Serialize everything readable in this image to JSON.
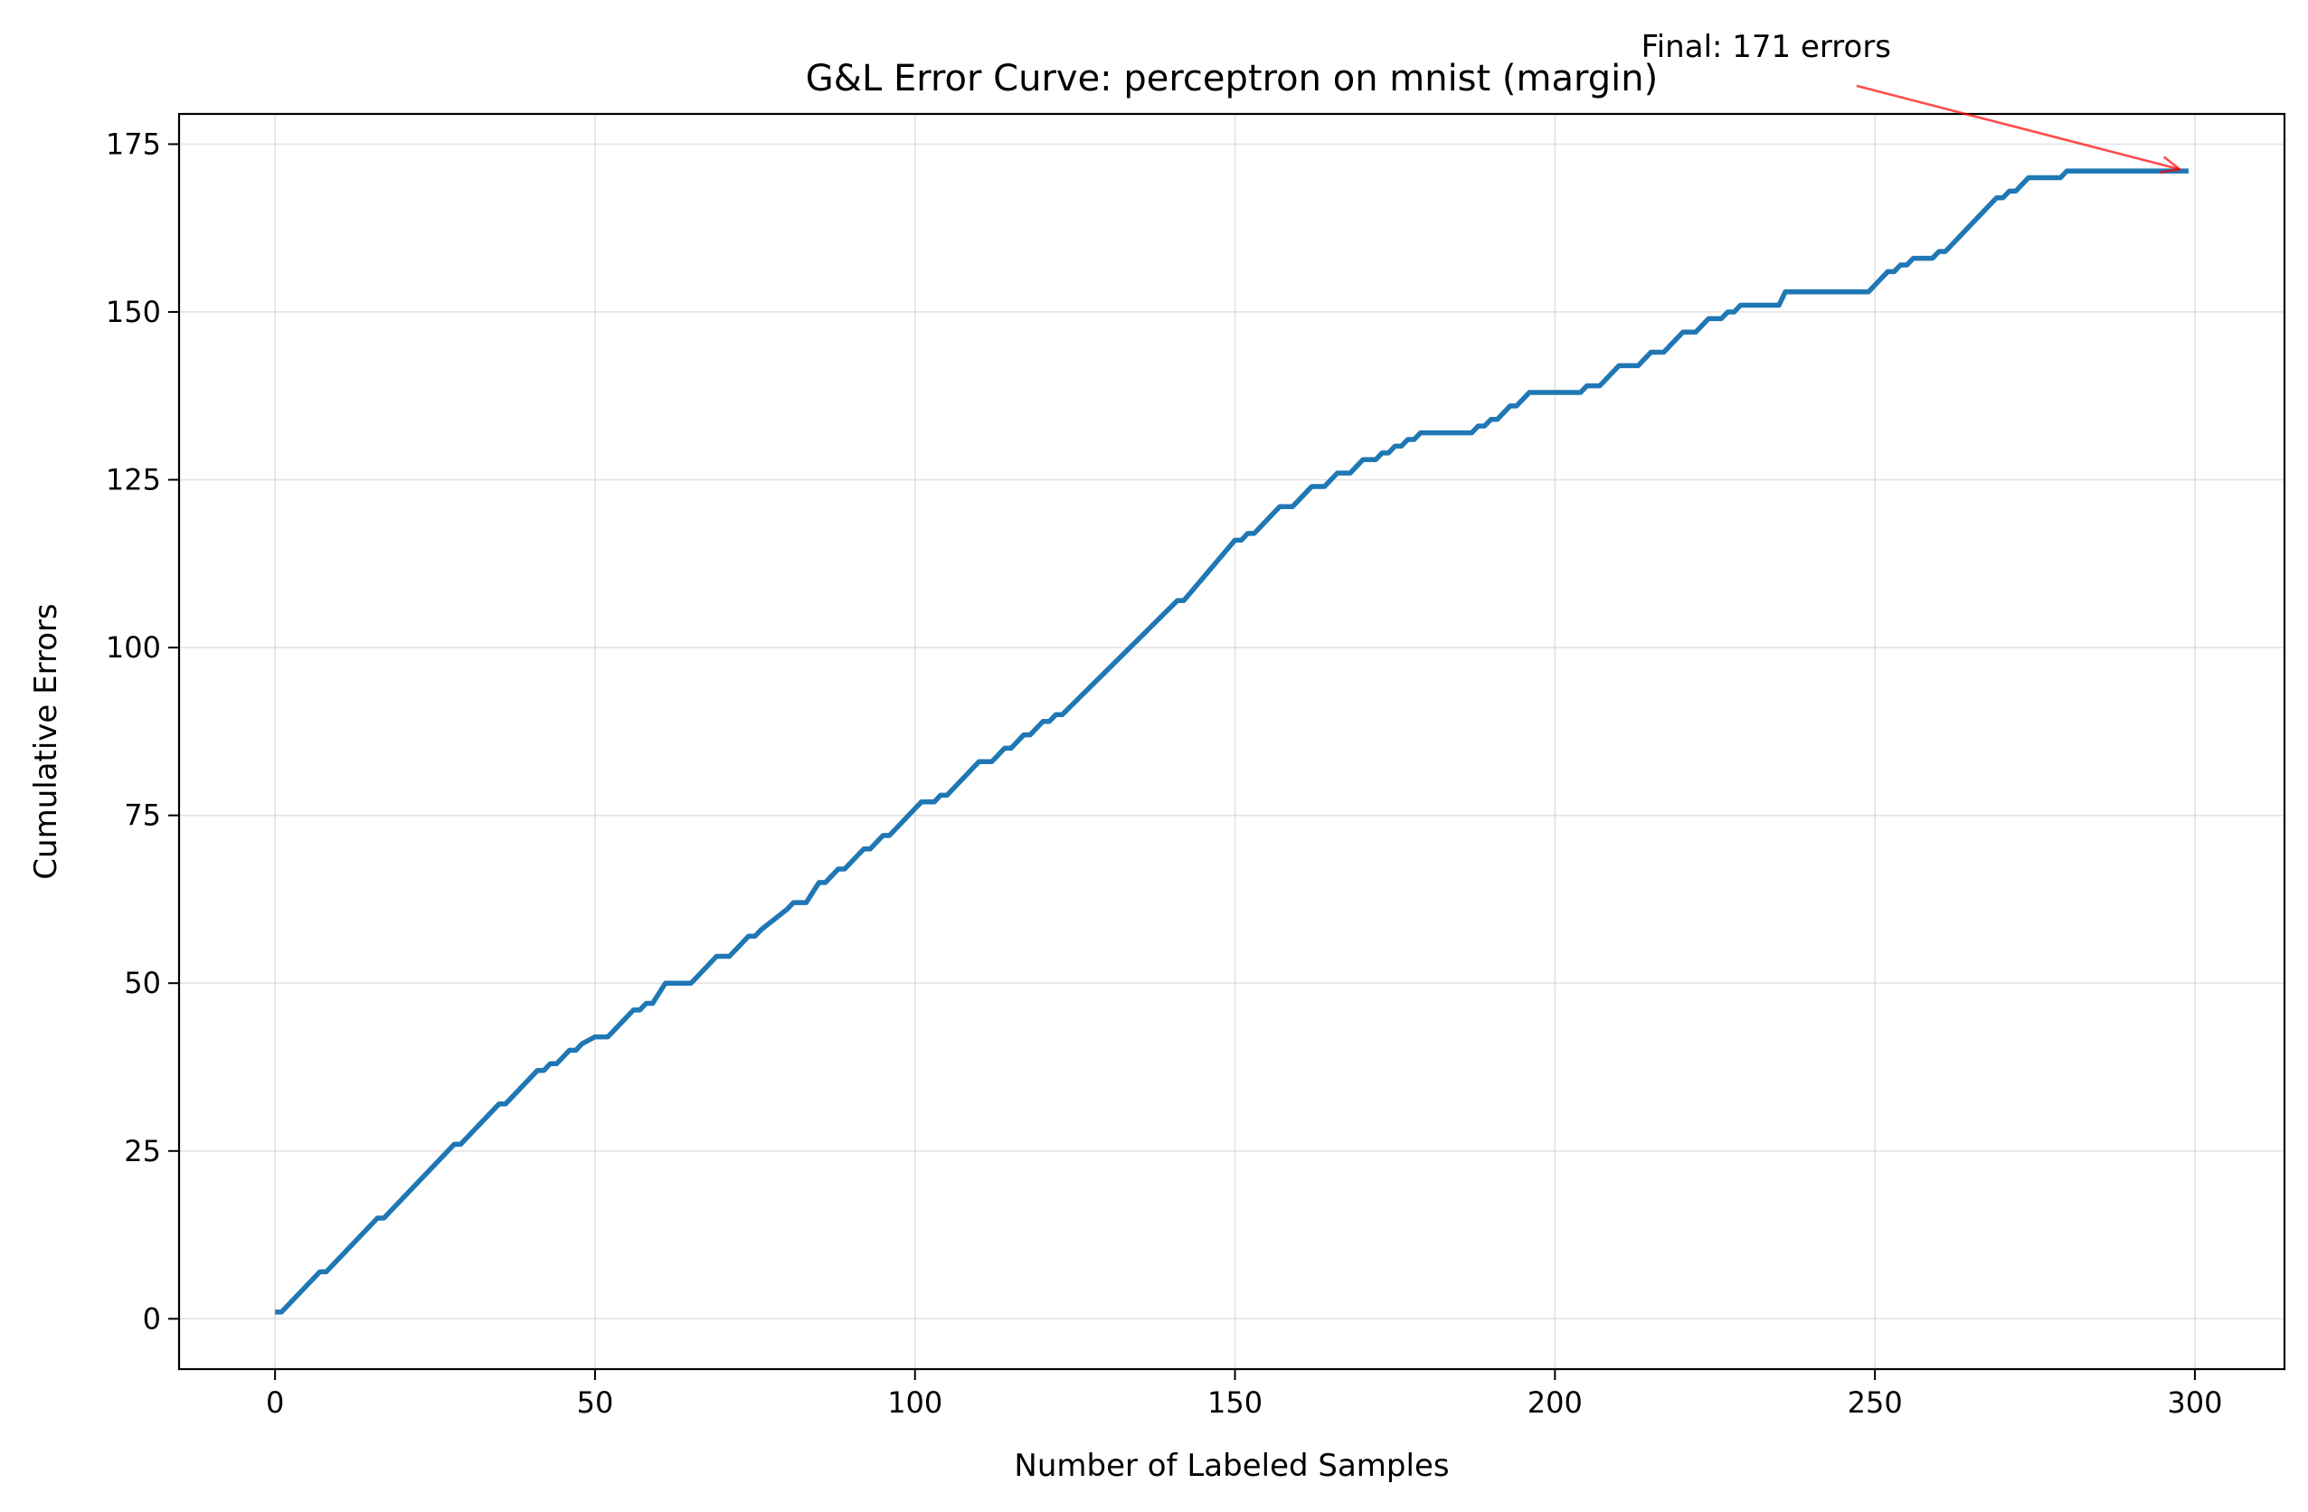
{
  "chart_data": {
    "type": "line",
    "title": "G&L Error Curve: perceptron on mnist (margin)",
    "xlabel": "Number of Labeled Samples",
    "ylabel": "Cumulative Errors",
    "xlim": [
      -15,
      314
    ],
    "ylim": [
      -7.5,
      179.5
    ],
    "xticks": [
      0,
      50,
      100,
      150,
      200,
      250,
      300
    ],
    "yticks": [
      0,
      25,
      50,
      75,
      100,
      125,
      150,
      175
    ],
    "grid": true,
    "legend": "none",
    "colors": {
      "series": "#1f77b4",
      "annotation": "#ff0000"
    },
    "series": [
      {
        "x": [
          0,
          1,
          7,
          8,
          16,
          17,
          28,
          29,
          35,
          36,
          41,
          42,
          43,
          44,
          45,
          46,
          47,
          48,
          50,
          51,
          52,
          53,
          55,
          56,
          57,
          58,
          59,
          61,
          62,
          64,
          65,
          69,
          70,
          71,
          74,
          75,
          76,
          80,
          81,
          82,
          83,
          85,
          86,
          87,
          88,
          89,
          92,
          93,
          95,
          96,
          97,
          101,
          102,
          103,
          104,
          105,
          106,
          110,
          111,
          112,
          113,
          114,
          115,
          116,
          117,
          118,
          119,
          120,
          121,
          122,
          123,
          141,
          142,
          150,
          151,
          152,
          153,
          157,
          158,
          159,
          160,
          162,
          163,
          164,
          165,
          166,
          167,
          168,
          169,
          170,
          171,
          172,
          173,
          174,
          175,
          176,
          177,
          178,
          179,
          187,
          188,
          189,
          190,
          191,
          192,
          193,
          194,
          196,
          197,
          204,
          205,
          206,
          207,
          209,
          210,
          212,
          213,
          214,
          215,
          217,
          218,
          220,
          221,
          222,
          223,
          224,
          225,
          226,
          227,
          228,
          229,
          232,
          233,
          235,
          236,
          249,
          250,
          252,
          253,
          254,
          255,
          256,
          257,
          259,
          260,
          261,
          262,
          268,
          269,
          270,
          271,
          272,
          273,
          274,
          276,
          278,
          279,
          280,
          281,
          299
        ],
        "y": [
          1,
          1,
          7,
          7,
          15,
          15,
          26,
          26,
          32,
          32,
          37,
          37,
          38,
          38,
          39,
          40,
          40,
          41,
          42,
          42,
          42,
          43,
          45,
          46,
          46,
          47,
          47,
          50,
          50,
          50,
          50,
          54,
          54,
          54,
          57,
          57,
          58,
          61,
          62,
          62,
          62,
          65,
          65,
          66,
          67,
          67,
          70,
          70,
          72,
          72,
          73,
          77,
          77,
          77,
          78,
          78,
          79,
          83,
          83,
          83,
          84,
          85,
          85,
          86,
          87,
          87,
          88,
          89,
          89,
          90,
          90,
          107,
          107,
          116,
          116,
          117,
          117,
          121,
          121,
          121,
          122,
          124,
          124,
          124,
          125,
          126,
          126,
          126,
          127,
          128,
          128,
          128,
          129,
          129,
          130,
          130,
          131,
          131,
          132,
          132,
          133,
          133,
          134,
          134,
          135,
          136,
          136,
          138,
          138,
          138,
          139,
          139,
          139,
          141,
          142,
          142,
          142,
          143,
          144,
          144,
          145,
          147,
          147,
          147,
          148,
          149,
          149,
          149,
          150,
          150,
          151,
          151,
          151,
          151,
          153,
          153,
          154,
          156,
          156,
          157,
          157,
          158,
          158,
          158,
          159,
          159,
          160,
          166,
          167,
          167,
          168,
          168,
          169,
          170,
          170,
          170,
          170,
          171,
          171,
          171
        ]
      }
    ],
    "annotation": {
      "text": "Final: 171 errors",
      "x": 299,
      "y": 171,
      "text_x": 233,
      "text_y": 188
    }
  }
}
